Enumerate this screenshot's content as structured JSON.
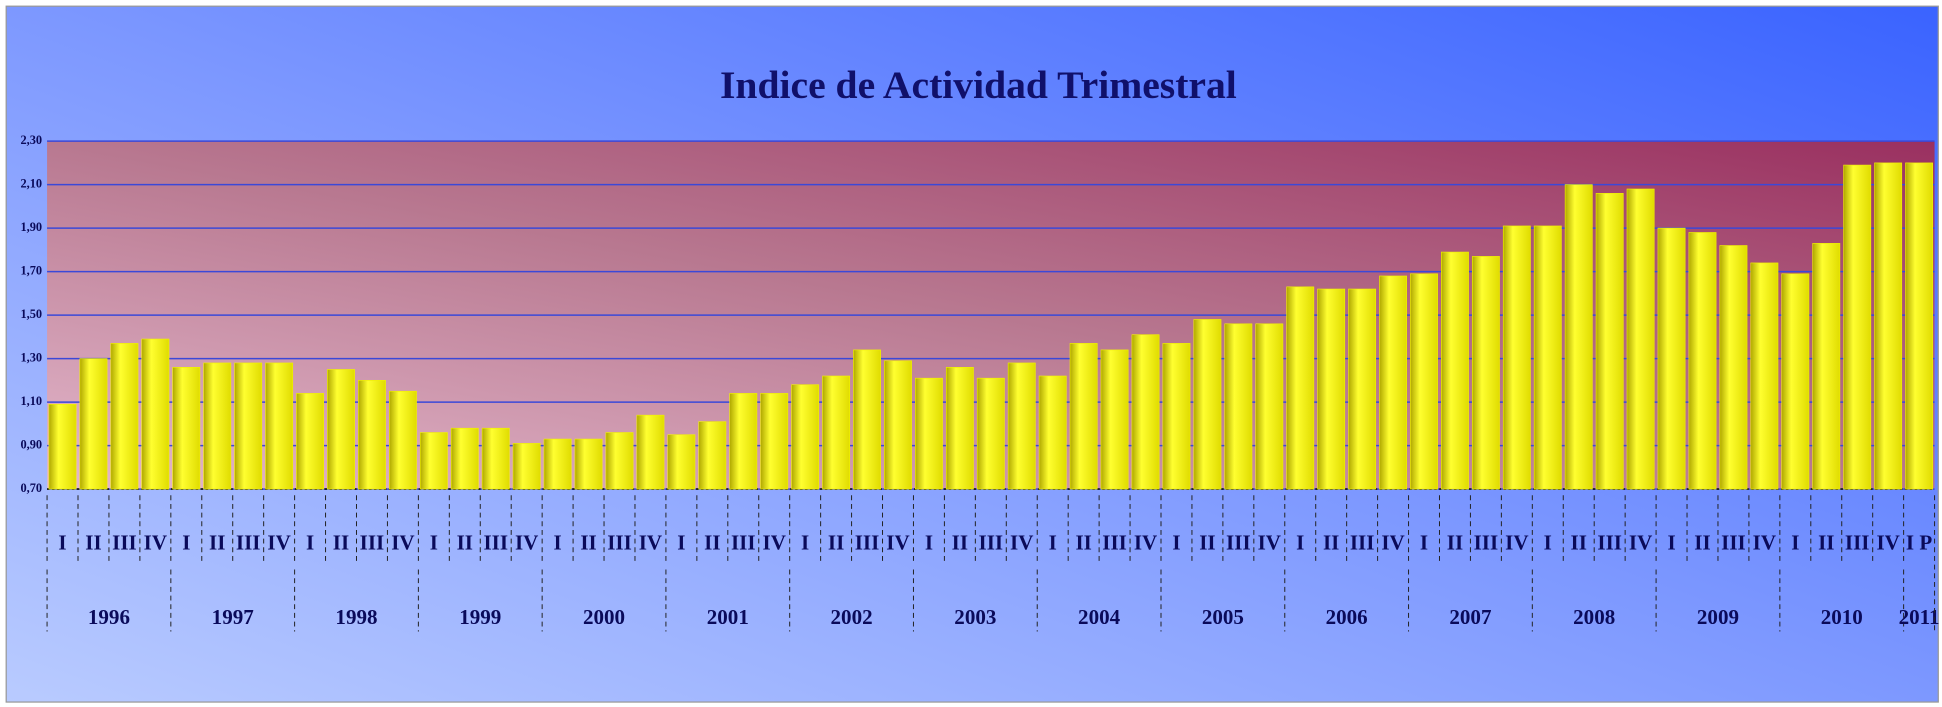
{
  "chart_data": {
    "type": "bar",
    "title": "Indice de Actividad Trimestral",
    "groups": [
      {
        "label": "1996",
        "categories": [
          "I",
          "II",
          "III",
          "IV"
        ]
      },
      {
        "label": "1997",
        "categories": [
          "I",
          "II",
          "III",
          "IV"
        ]
      },
      {
        "label": "1998",
        "categories": [
          "I",
          "II",
          "III",
          "IV"
        ]
      },
      {
        "label": "1999",
        "categories": [
          "I",
          "II",
          "III",
          "IV"
        ]
      },
      {
        "label": "2000",
        "categories": [
          "I",
          "II",
          "III",
          "IV"
        ]
      },
      {
        "label": "2001",
        "categories": [
          "I",
          "II",
          "III",
          "IV"
        ]
      },
      {
        "label": "2002",
        "categories": [
          "I",
          "II",
          "III",
          "IV"
        ]
      },
      {
        "label": "2003",
        "categories": [
          "I",
          "II",
          "III",
          "IV"
        ]
      },
      {
        "label": "2004",
        "categories": [
          "I",
          "II",
          "III",
          "IV"
        ]
      },
      {
        "label": "2005",
        "categories": [
          "I",
          "II",
          "III",
          "IV"
        ]
      },
      {
        "label": "2006",
        "categories": [
          "I",
          "II",
          "III",
          "IV"
        ]
      },
      {
        "label": "2007",
        "categories": [
          "I",
          "II",
          "III",
          "IV"
        ]
      },
      {
        "label": "2008",
        "categories": [
          "I",
          "II",
          "III",
          "IV"
        ]
      },
      {
        "label": "2009",
        "categories": [
          "I",
          "II",
          "III",
          "IV"
        ]
      },
      {
        "label": "2010",
        "categories": [
          "I",
          "II",
          "III",
          "IV"
        ]
      },
      {
        "label": "2011",
        "categories": [
          "I P"
        ]
      }
    ],
    "values": [
      1.09,
      1.3,
      1.37,
      1.39,
      1.26,
      1.28,
      1.28,
      1.28,
      1.14,
      1.25,
      1.2,
      1.15,
      0.96,
      0.98,
      0.98,
      0.91,
      0.93,
      0.93,
      0.96,
      1.04,
      0.95,
      1.01,
      1.14,
      1.14,
      1.18,
      1.22,
      1.34,
      1.29,
      1.21,
      1.26,
      1.21,
      1.28,
      1.22,
      1.37,
      1.34,
      1.41,
      1.37,
      1.48,
      1.46,
      1.46,
      1.63,
      1.62,
      1.62,
      1.68,
      1.69,
      1.79,
      1.77,
      1.91,
      1.91,
      2.1,
      2.06,
      2.08,
      1.9,
      1.88,
      1.82,
      1.74,
      1.69,
      1.83,
      2.19,
      2.2,
      2.2
    ],
    "color": "#f2f200",
    "ylim": [
      0.7,
      2.3
    ],
    "yticks": [
      {
        "value": 0.7,
        "label": "0,70"
      },
      {
        "value": 0.9,
        "label": "0,90"
      },
      {
        "value": 1.1,
        "label": "1,10"
      },
      {
        "value": 1.3,
        "label": "1,30"
      },
      {
        "value": 1.5,
        "label": "1,50"
      },
      {
        "value": 1.7,
        "label": "1,70"
      },
      {
        "value": 1.9,
        "label": "1,90"
      },
      {
        "value": 2.1,
        "label": "2,10"
      },
      {
        "value": 2.3,
        "label": "2,30"
      }
    ],
    "grid": true
  }
}
